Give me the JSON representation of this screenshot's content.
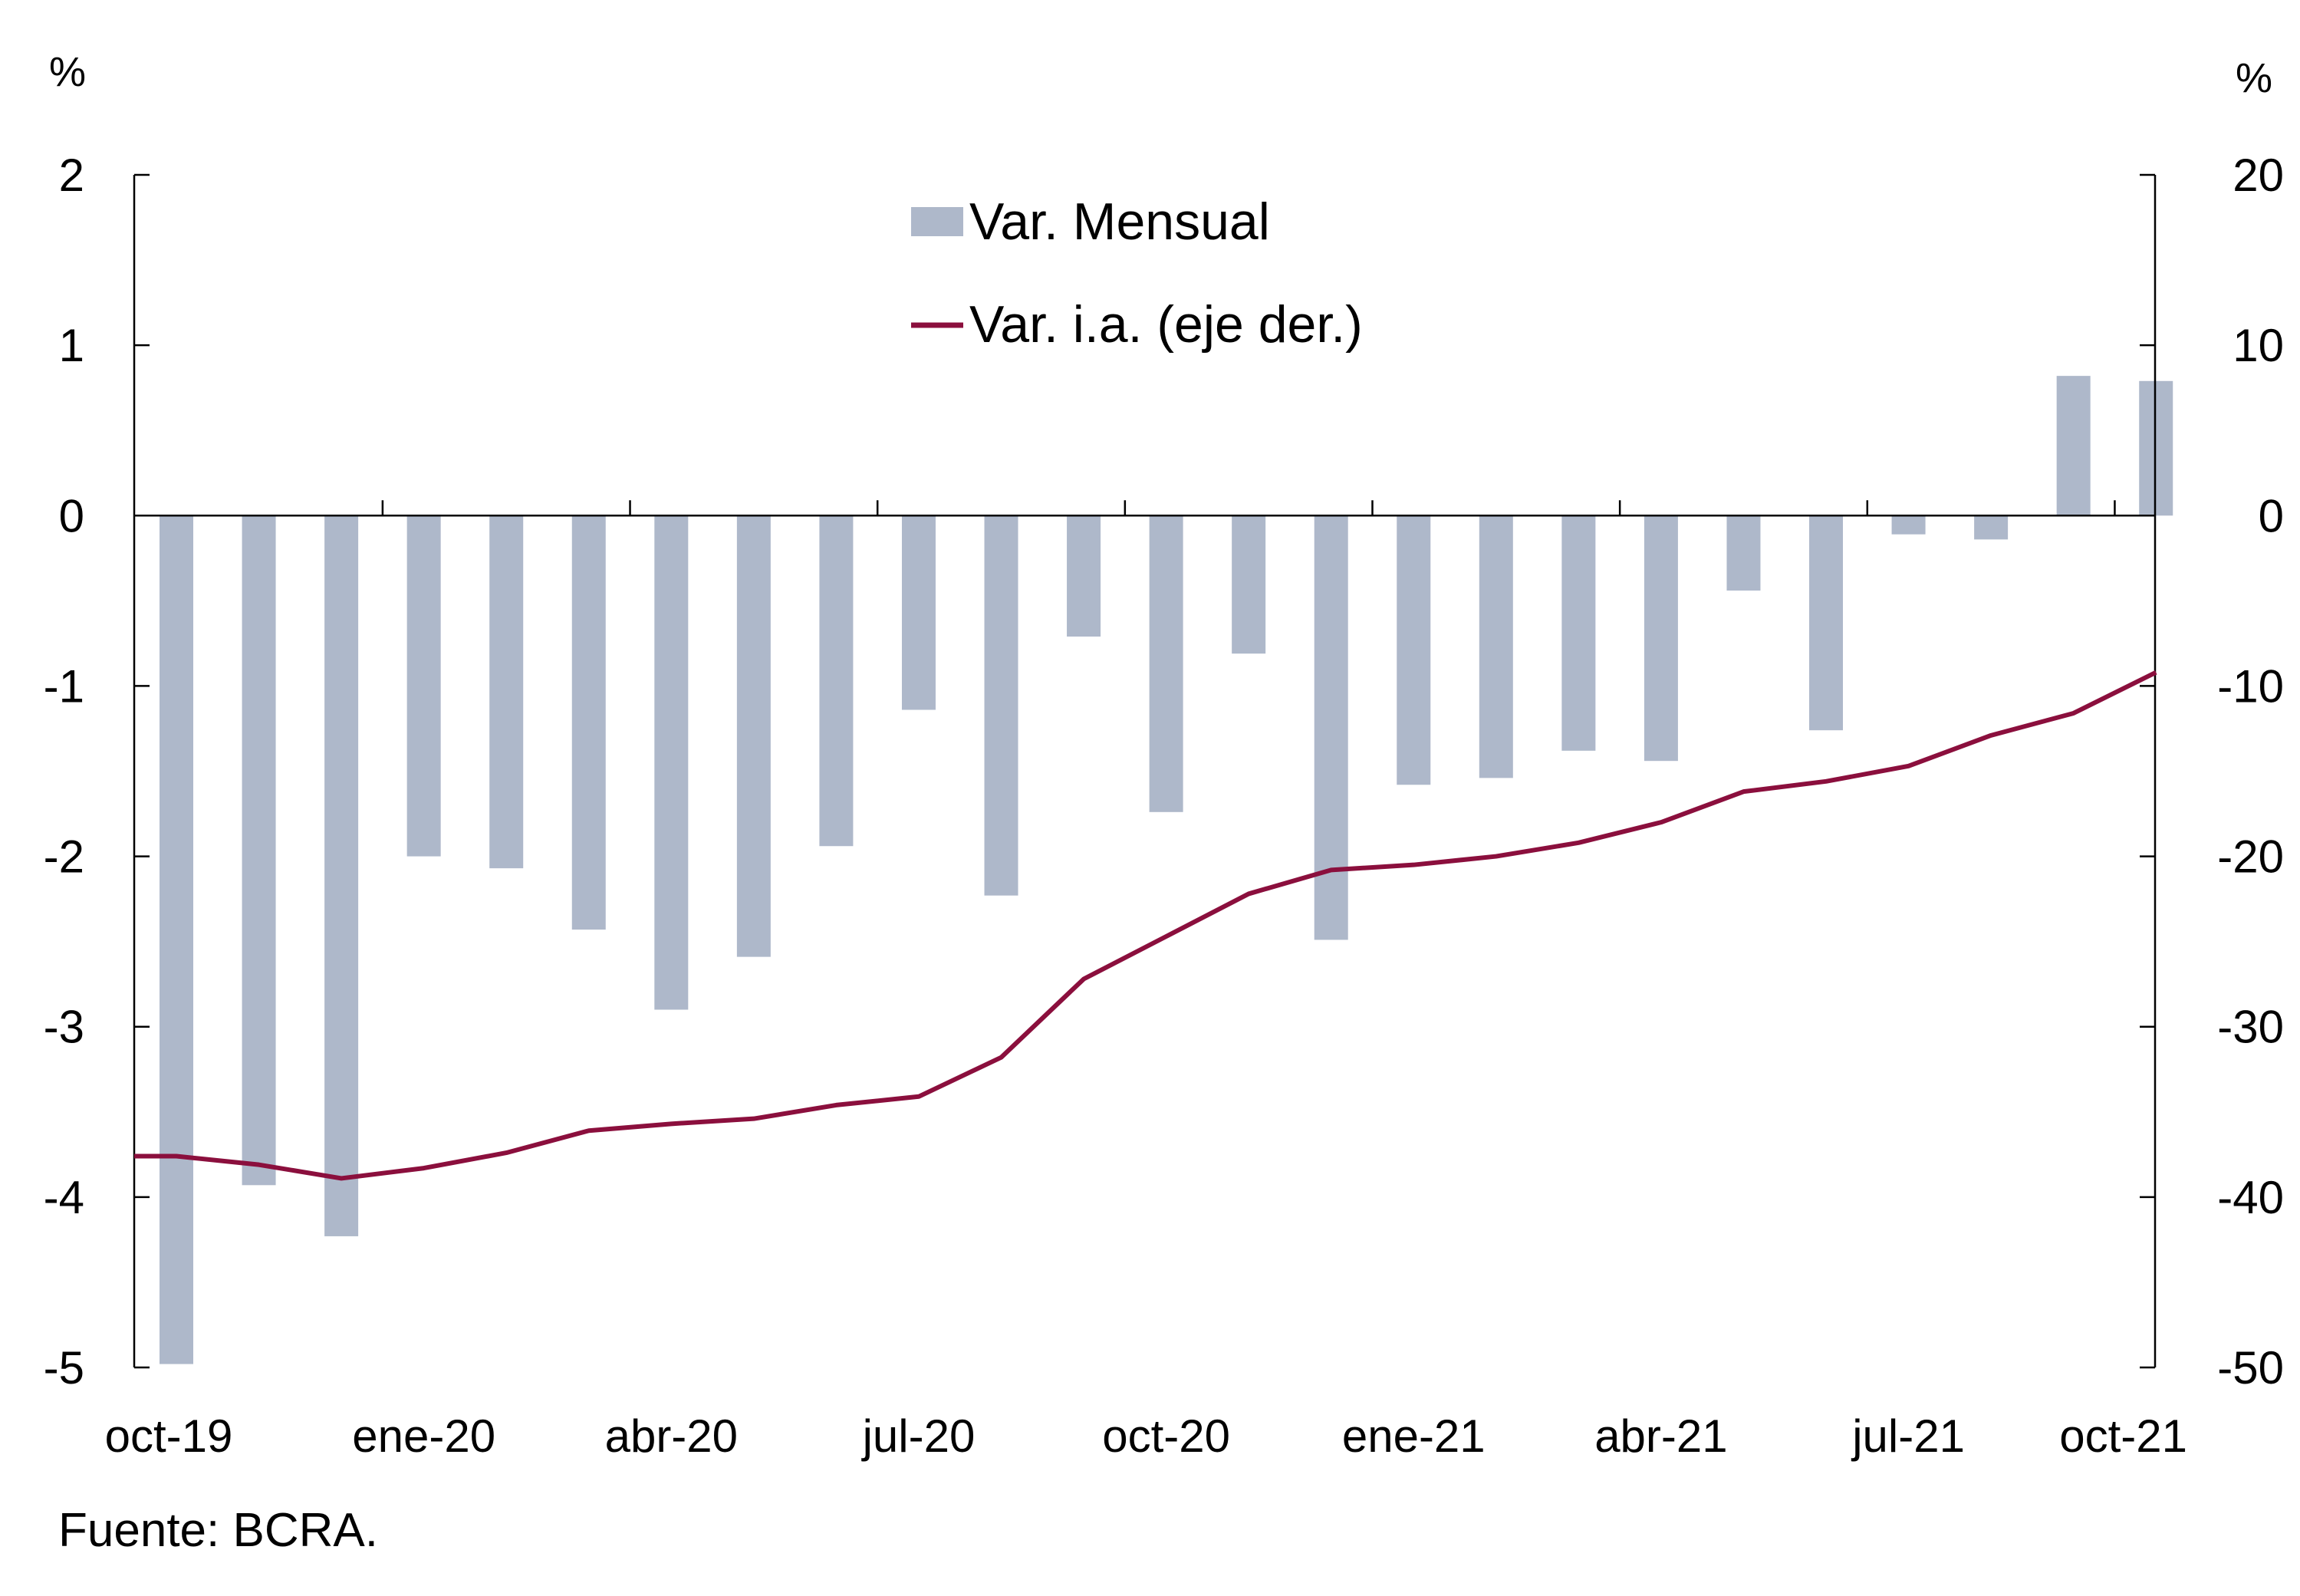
{
  "chart_data": {
    "type": "bar+line",
    "categories": [
      "oct-19",
      "nov-19",
      "dic-19",
      "ene-20",
      "feb-20",
      "mar-20",
      "abr-20",
      "may-20",
      "jun-20",
      "jul-20",
      "ago-20",
      "sep-20",
      "oct-20",
      "nov-20",
      "dic-20",
      "ene-21",
      "feb-21",
      "mar-21",
      "abr-21",
      "may-21",
      "jun-21",
      "jul-21",
      "ago-21",
      "sep-21",
      "oct-21"
    ],
    "x_tick_labels": [
      "oct-19",
      "ene-20",
      "abr-20",
      "jul-20",
      "oct-20",
      "ene-21",
      "abr-21",
      "jul-21",
      "oct-21"
    ],
    "left_axis": {
      "unit": "%",
      "ylim": [
        -5,
        2
      ],
      "ticks": [
        2,
        1,
        0,
        -1,
        -2,
        -3,
        -4,
        -5
      ]
    },
    "right_axis": {
      "unit": "%",
      "ylim": [
        -50,
        20
      ],
      "ticks": [
        20,
        10,
        0,
        -10,
        -20,
        -30,
        -40,
        -50
      ]
    },
    "series": [
      {
        "name": "Var. Mensual",
        "type": "bar",
        "axis": "left",
        "color": "#aeb8ca",
        "values": [
          -4.98,
          -3.93,
          -4.23,
          -2.0,
          -2.07,
          -2.43,
          -2.9,
          -2.59,
          -1.94,
          -1.14,
          -2.23,
          -0.71,
          -1.74,
          -0.81,
          -2.49,
          -1.58,
          -1.54,
          -1.38,
          -1.44,
          -0.44,
          -1.26,
          -0.11,
          -0.14,
          0.82,
          0.79
        ]
      },
      {
        "name": "Var. i.a. (eje der.)",
        "type": "line",
        "axis": "right",
        "color": "#8b0f3d",
        "values": [
          -37.6,
          -38.1,
          -38.9,
          -38.3,
          -37.4,
          -36.1,
          -35.7,
          -35.4,
          -34.6,
          -34.1,
          -31.8,
          -27.2,
          -24.7,
          -22.2,
          -20.8,
          -20.5,
          -20.0,
          -19.2,
          -18.0,
          -16.2,
          -15.6,
          -14.7,
          -12.9,
          -11.6,
          -9.2
        ]
      }
    ],
    "legend_position": "top-center",
    "grid": false
  },
  "source_text": "Fuente: BCRA."
}
